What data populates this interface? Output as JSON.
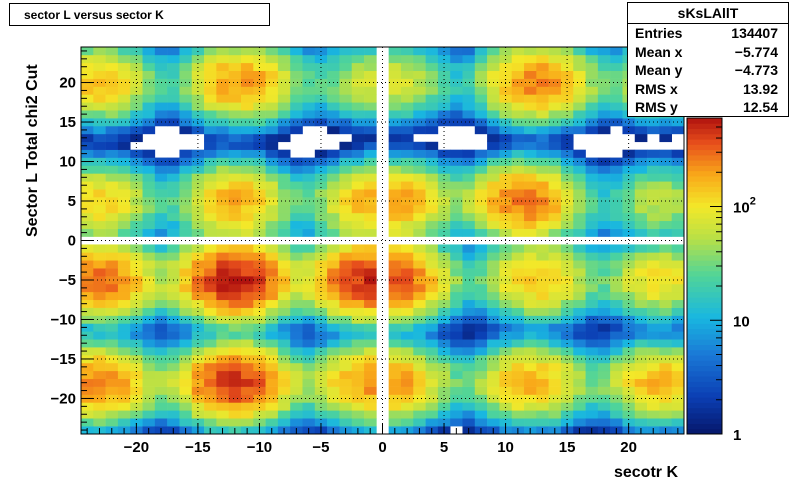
{
  "title": "sector L versus sector K",
  "stats": {
    "name": "sKsLAllT",
    "rows": [
      {
        "label": "Entries",
        "value": "134407"
      },
      {
        "label": "Mean x",
        "value": "−5.774"
      },
      {
        "label": "Mean y",
        "value": "−4.773"
      },
      {
        "label": "RMS x",
        "value": "13.92"
      },
      {
        "label": "RMS y",
        "value": "12.54"
      }
    ]
  },
  "chart_data": {
    "type": "heatmap",
    "xlabel": "secotr K",
    "ylabel": "Sector L  Total chi2 Cut",
    "xlim": [
      -24.5,
      24.5
    ],
    "ylim": [
      -24.5,
      24.5
    ],
    "xticks": [
      -20,
      -15,
      -10,
      -5,
      0,
      5,
      10,
      15,
      20
    ],
    "yticks": [
      -20,
      -15,
      -10,
      -5,
      0,
      5,
      10,
      15,
      20
    ],
    "xtick_labels": [
      "−20",
      "−15",
      "−10",
      "−5",
      "0",
      "5",
      "10",
      "15",
      "20"
    ],
    "ytick_labels": [
      "−20",
      "−15",
      "−10",
      "−5",
      "0",
      "5",
      "10",
      "15",
      "20"
    ],
    "grid": true,
    "z_scale": "log",
    "zlim": [
      1,
      600
    ],
    "z_tick_labels": [
      "1",
      "10",
      "10^2"
    ],
    "colormap": "rainbow",
    "blank_bins_x": [
      0
    ],
    "blank_bins_y": [
      0
    ],
    "clusters": [
      {
        "x": -23,
        "y": 20,
        "peak": 150
      },
      {
        "x": -11.5,
        "y": 20,
        "peak": 220
      },
      {
        "x": -2,
        "y": 20,
        "peak": 40
      },
      {
        "x": 1.5,
        "y": 20,
        "peak": 60
      },
      {
        "x": 12.5,
        "y": 20,
        "peak": 250
      },
      {
        "x": 22.5,
        "y": 20,
        "peak": 80
      },
      {
        "x": -23,
        "y": 5,
        "peak": 130
      },
      {
        "x": -12,
        "y": 5,
        "peak": 180
      },
      {
        "x": -1.5,
        "y": 5,
        "peak": 100
      },
      {
        "x": 1.5,
        "y": 5,
        "peak": 150
      },
      {
        "x": 11.5,
        "y": 5,
        "peak": 280
      },
      {
        "x": 22.5,
        "y": 5,
        "peak": 60
      },
      {
        "x": -23,
        "y": -5,
        "peak": 300
      },
      {
        "x": -12,
        "y": -5,
        "peak": 550
      },
      {
        "x": -1.5,
        "y": -5,
        "peak": 380
      },
      {
        "x": 1.5,
        "y": -5,
        "peak": 200
      },
      {
        "x": 12.5,
        "y": -5,
        "peak": 150
      },
      {
        "x": 22.5,
        "y": -5,
        "peak": 110
      },
      {
        "x": -23,
        "y": -18,
        "peak": 260
      },
      {
        "x": -12,
        "y": -18,
        "peak": 450
      },
      {
        "x": -1.5,
        "y": -18,
        "peak": 160
      },
      {
        "x": 1.5,
        "y": -18,
        "peak": 130
      },
      {
        "x": 12,
        "y": -18,
        "peak": 180
      },
      {
        "x": 22.5,
        "y": -18,
        "peak": 170
      }
    ]
  }
}
